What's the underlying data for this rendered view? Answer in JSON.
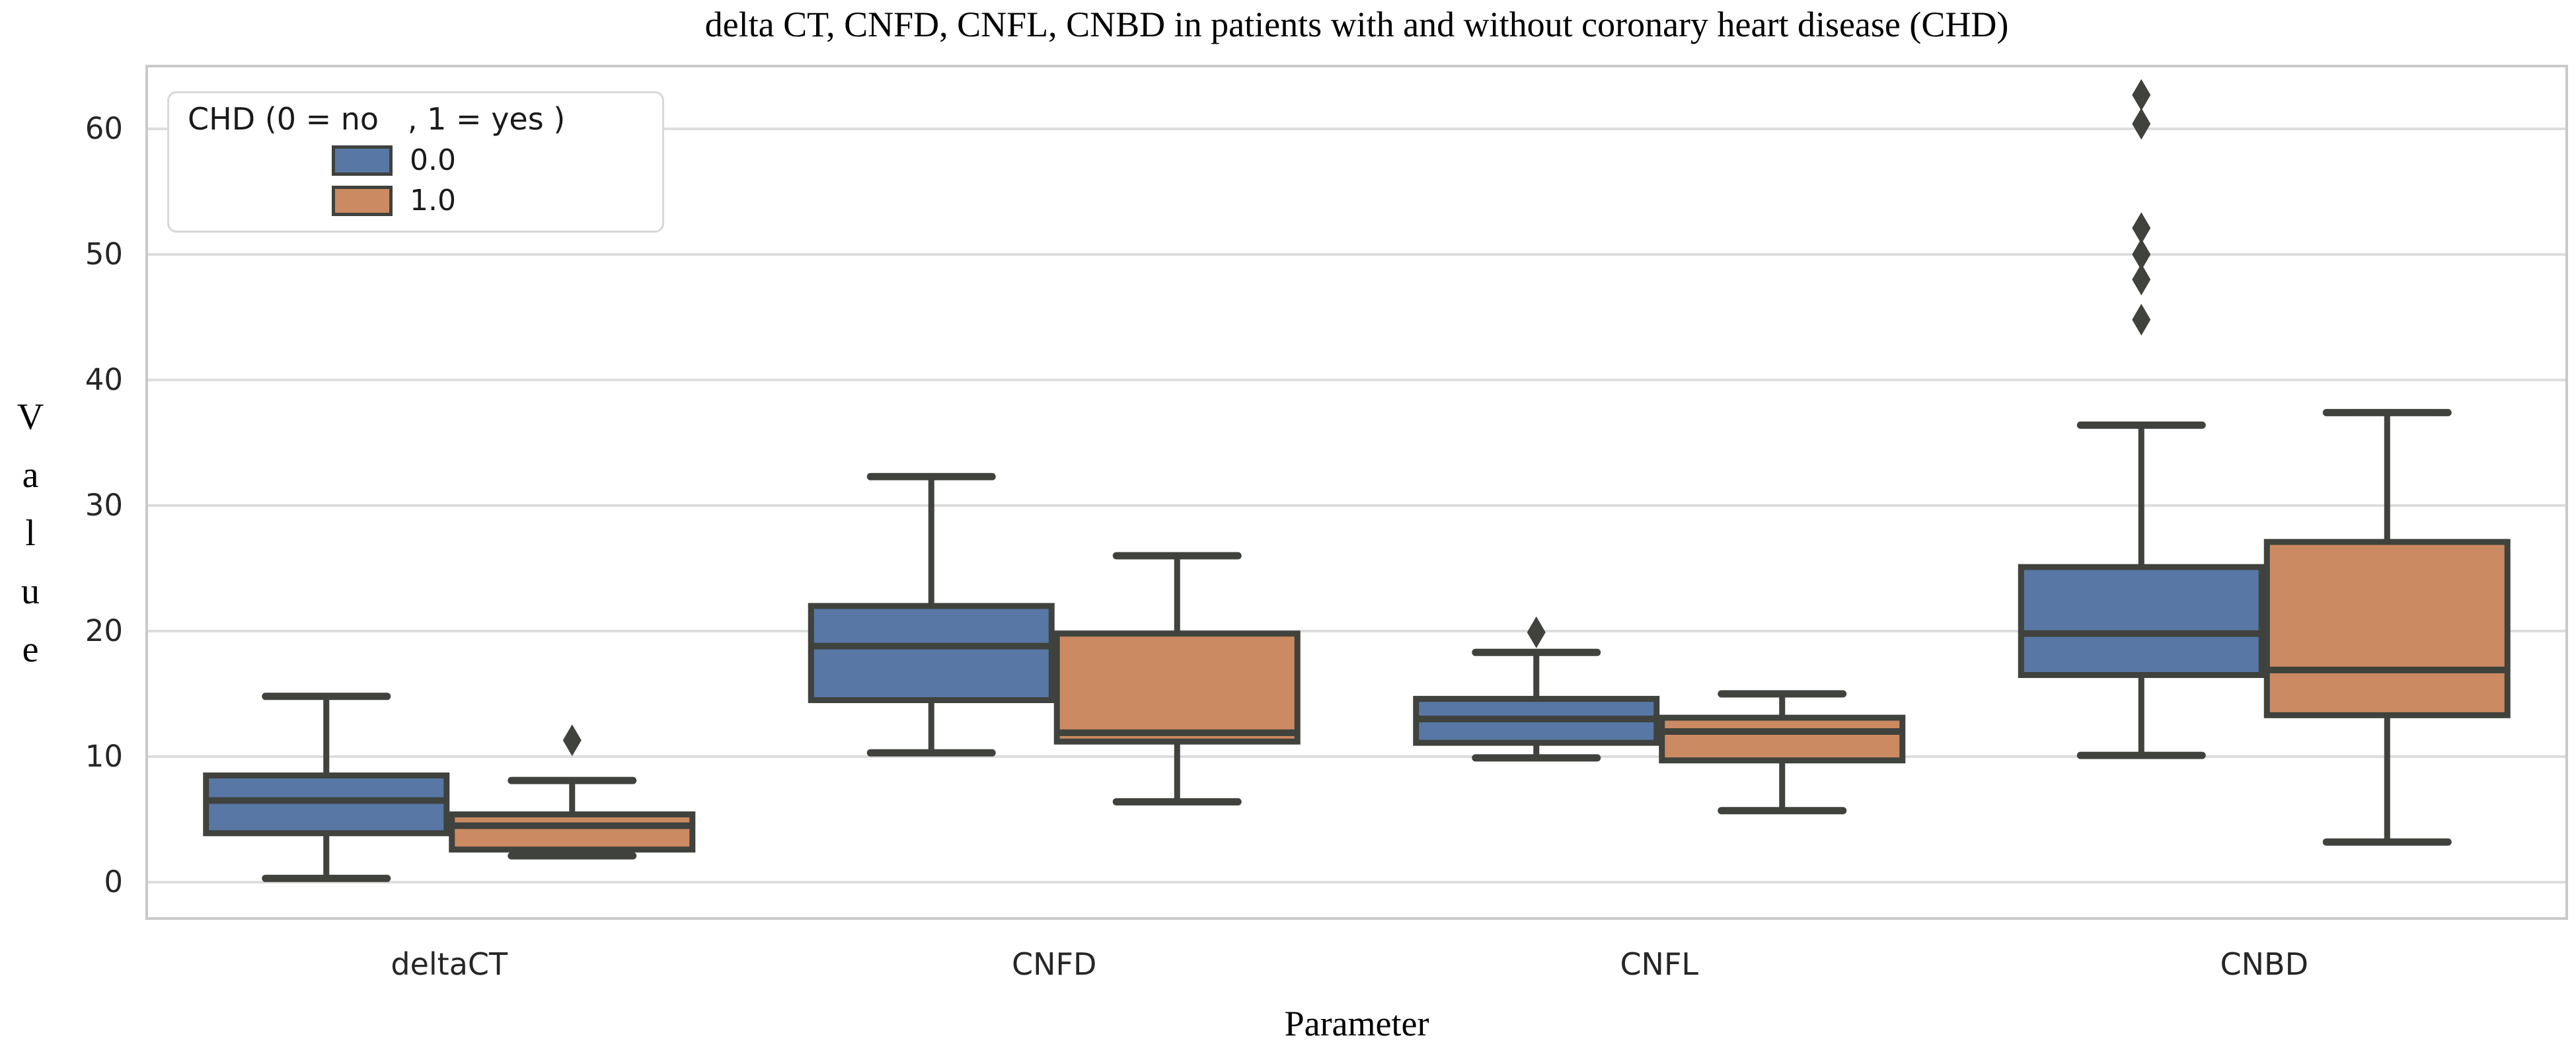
{
  "chart_data": {
    "type": "boxplot",
    "title": "delta CT, CNFD, CNFL, CNBD in patients with and without coronary heart disease (CHD)",
    "xlabel": "Parameter",
    "ylabel": "Value",
    "categories": [
      "deltaCT",
      "CNFD",
      "CNFL",
      "CNBD"
    ],
    "yticks": [
      0,
      10,
      20,
      30,
      40,
      50,
      60
    ],
    "ylim": [
      -2.9,
      65.5
    ],
    "grid": "horizontal",
    "legend": {
      "title": "CHD (0 = no   , 1 = yes )",
      "position": "upper left",
      "items": [
        "0.0",
        "1.0"
      ]
    },
    "colors": {
      "series0": "#5877A5",
      "series1": "#CC8A62",
      "box_edge": "#3F423D",
      "grid": "#DDDDDD",
      "spine": "#C9C9C9",
      "text": "#1A1A1A"
    },
    "series": [
      {
        "name": "0.0",
        "color": "#5877A5",
        "boxes": [
          {
            "whislo": 0.3,
            "q1": 3.9,
            "median": 6.5,
            "q3": 8.5,
            "whishi": 14.8,
            "fliers": []
          },
          {
            "whislo": 10.3,
            "q1": 14.5,
            "median": 18.8,
            "q3": 22.0,
            "whishi": 32.3,
            "fliers": []
          },
          {
            "whislo": 9.9,
            "q1": 11.1,
            "median": 13.0,
            "q3": 14.6,
            "whishi": 18.3,
            "fliers": [
              19.9
            ]
          },
          {
            "whislo": 10.1,
            "q1": 16.5,
            "median": 19.8,
            "q3": 25.1,
            "whishi": 36.4,
            "fliers": [
              44.8,
              48.0,
              50.0,
              52.1,
              60.4,
              62.7
            ]
          }
        ]
      },
      {
        "name": "1.0",
        "color": "#CC8A62",
        "boxes": [
          {
            "whislo": 2.1,
            "q1": 2.6,
            "median": 4.5,
            "q3": 5.4,
            "whishi": 8.1,
            "fliers": [
              11.3
            ]
          },
          {
            "whislo": 6.4,
            "q1": 11.2,
            "median": 11.9,
            "q3": 19.8,
            "whishi": 26.0,
            "fliers": []
          },
          {
            "whislo": 5.7,
            "q1": 9.7,
            "median": 12.0,
            "q3": 13.1,
            "whishi": 15.0,
            "fliers": []
          },
          {
            "whislo": 3.2,
            "q1": 13.3,
            "median": 16.9,
            "q3": 27.1,
            "whishi": 37.4,
            "fliers": []
          }
        ]
      }
    ]
  }
}
